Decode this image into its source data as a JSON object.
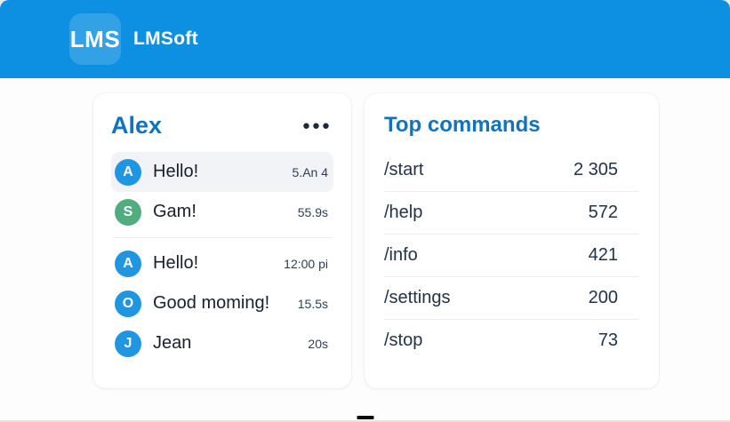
{
  "header": {
    "logo_text": "LMS",
    "app_name": "LMSoft"
  },
  "icons": {
    "more_options": "●●●"
  },
  "chat_panel": {
    "title": "Alex",
    "messages": [
      {
        "initial": "A",
        "text": "Hello!",
        "meta": "5.An 4",
        "avatar_color": "#2196e0"
      },
      {
        "initial": "S",
        "text": "Gam!",
        "meta": "55.9s",
        "avatar_color": "#4fad7e"
      },
      {
        "initial": "A",
        "text": "Hello!",
        "meta": "12:00 pi",
        "avatar_color": "#2196e0"
      },
      {
        "initial": "O",
        "text": "Good moming!",
        "meta": "15.5s",
        "avatar_color": "#2196e0"
      },
      {
        "initial": "J",
        "text": "Jean",
        "meta": "20s",
        "avatar_color": "#2196e0"
      }
    ]
  },
  "commands_panel": {
    "title": "Top commands",
    "rows": [
      {
        "command": "/start",
        "count": "2 305"
      },
      {
        "command": "/help",
        "count": "572"
      },
      {
        "command": "/info",
        "count": "421"
      },
      {
        "command": "/settings",
        "count": "200"
      },
      {
        "command": "/stop",
        "count": "73"
      }
    ]
  },
  "colors": {
    "header_blue": "#0d90e2",
    "title_blue": "#1273bd",
    "text_dark": "#16202e",
    "avatar_blue": "#2196e0",
    "avatar_green": "#4fad7e",
    "row_highlight": "#f1f3f7"
  }
}
